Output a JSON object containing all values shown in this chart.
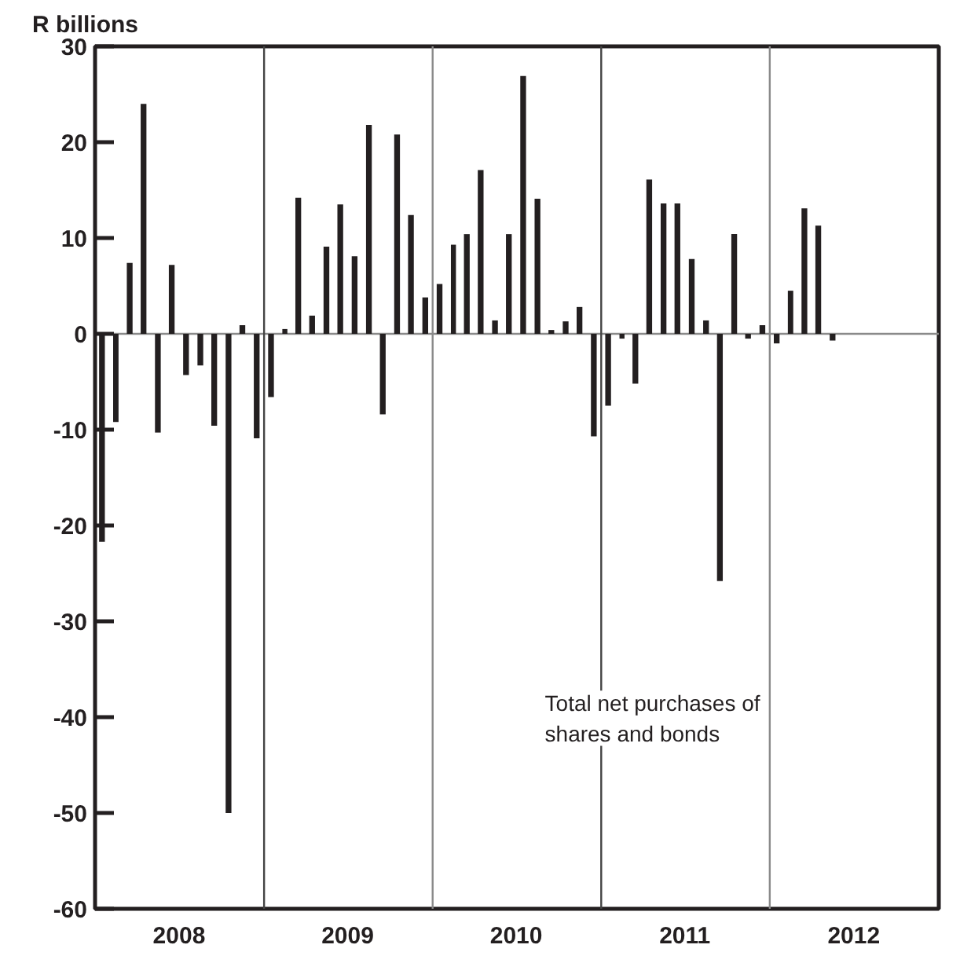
{
  "chart_data": {
    "type": "bar",
    "ylabel": "R billions",
    "x": [
      "2008-01-16",
      "2008-02-15",
      "2008-03-16",
      "2008-04-15",
      "2008-05-16",
      "2008-06-15",
      "2008-07-16",
      "2008-08-16",
      "2008-09-15",
      "2008-10-16",
      "2008-11-15",
      "2008-12-16",
      "2009-01-16",
      "2009-02-15",
      "2009-03-16",
      "2009-04-15",
      "2009-05-16",
      "2009-06-15",
      "2009-07-16",
      "2009-08-16",
      "2009-09-15",
      "2009-10-16",
      "2009-11-15",
      "2009-12-16",
      "2010-01-16",
      "2010-02-15",
      "2010-03-16",
      "2010-04-15",
      "2010-05-16",
      "2010-06-15",
      "2010-07-16",
      "2010-08-16",
      "2010-09-15",
      "2010-10-16",
      "2010-11-15",
      "2010-12-16",
      "2011-01-16",
      "2011-02-15",
      "2011-03-16",
      "2011-04-15",
      "2011-05-16",
      "2011-06-15",
      "2011-07-16",
      "2011-08-16",
      "2011-09-15",
      "2011-10-16",
      "2011-11-15",
      "2011-12-16",
      "2012-01-16",
      "2012-02-15",
      "2012-03-16",
      "2012-04-15",
      "2012-05-16"
    ],
    "values": [
      -21.7,
      -9.2,
      7.4,
      24,
      -10.3,
      7.2,
      -4.3,
      -3.3,
      -9.6,
      -50,
      0.9,
      -10.9,
      -6.6,
      0.5,
      14.2,
      1.9,
      9.1,
      13.5,
      8.1,
      21.8,
      -8.4,
      20.8,
      12.4,
      3.8,
      5.2,
      9.3,
      10.4,
      17.1,
      1.4,
      10.4,
      26.9,
      14.1,
      0.4,
      1.3,
      2.8,
      -10.7,
      -7.5,
      -0.5,
      -5.2,
      16.1,
      13.6,
      13.6,
      7.8,
      1.4,
      -25.8,
      10.4,
      -0.5,
      0.9,
      -1,
      4.5,
      13.1,
      11.3,
      -0.7
    ],
    "color": "#231f20",
    "xlim": [
      "2008-01",
      "2013-01"
    ],
    "xticks": [
      {
        "value": "2008-07",
        "label": "2008"
      },
      {
        "value": "2009-07",
        "label": "2009"
      },
      {
        "value": "2010-07",
        "label": "2010"
      },
      {
        "value": "2011-07",
        "label": "2011"
      },
      {
        "value": "2012-07",
        "label": "2012"
      }
    ],
    "ylim": [
      -60,
      30
    ],
    "yticks": [
      -60,
      -50,
      -40,
      -30,
      -20,
      -10,
      0,
      10,
      20,
      30
    ],
    "ref_lines": [
      {
        "axis": "y",
        "value": 0,
        "color": "#8a8a8a"
      },
      {
        "axis": "x",
        "value": "2009-01",
        "color": "#444444"
      },
      {
        "axis": "x",
        "value": "2010-01",
        "color": "#8a8a8a"
      },
      {
        "axis": "x",
        "value": "2011-01",
        "color": "#444444"
      },
      {
        "axis": "x",
        "value": "2012-01",
        "color": "#8a8a8a"
      }
    ],
    "annotations": [
      "Total net purchases of\nshares and bonds"
    ],
    "grid": false
  }
}
